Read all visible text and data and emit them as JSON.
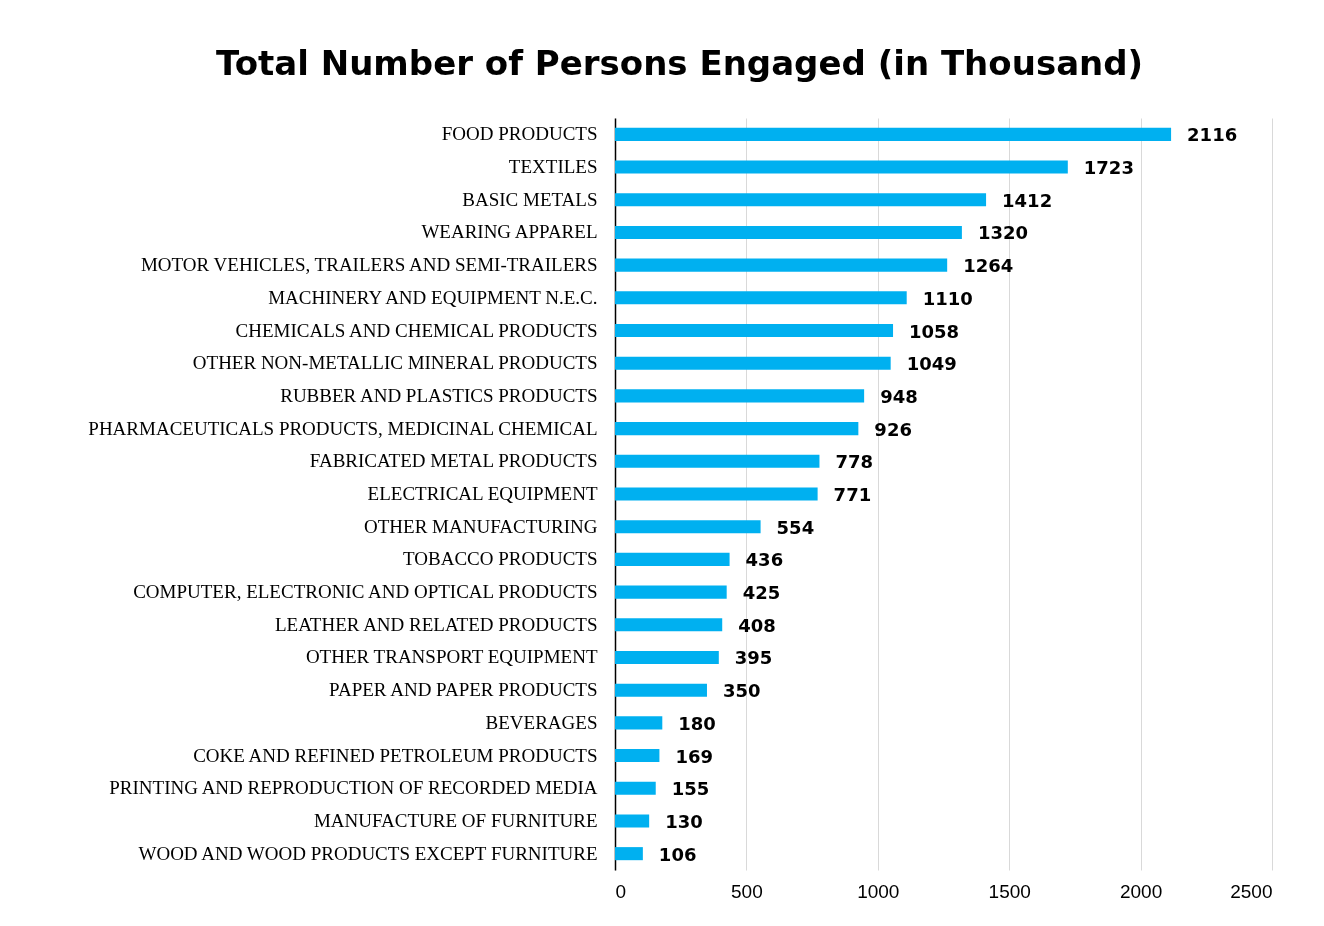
{
  "chart_data": {
    "type": "bar",
    "orientation": "horizontal",
    "title": "Total Number of Persons Engaged (in Thousand)",
    "categories": [
      "FOOD PRODUCTS",
      "TEXTILES",
      "BASIC METALS",
      "WEARING APPAREL",
      "MOTOR VEHICLES, TRAILERS AND SEMI-TRAILERS",
      "MACHINERY AND EQUIPMENT N.E.C.",
      "CHEMICALS AND CHEMICAL PRODUCTS",
      "OTHER NON-METALLIC MINERAL PRODUCTS",
      "RUBBER AND PLASTICS PRODUCTS",
      "PHARMACEUTICALS PRODUCTS, MEDICINAL CHEMICAL",
      "FABRICATED METAL PRODUCTS",
      "ELECTRICAL EQUIPMENT",
      "OTHER MANUFACTURING",
      "TOBACCO PRODUCTS",
      "COMPUTER, ELECTRONIC AND OPTICAL PRODUCTS",
      "LEATHER AND RELATED PRODUCTS",
      "OTHER TRANSPORT EQUIPMENT",
      "PAPER AND PAPER PRODUCTS",
      "BEVERAGES",
      "COKE AND REFINED PETROLEUM PRODUCTS",
      "PRINTING AND REPRODUCTION OF RECORDED MEDIA",
      "MANUFACTURE OF FURNITURE",
      "WOOD AND WOOD PRODUCTS EXCEPT FURNITURE"
    ],
    "values": [
      2116,
      1723,
      1412,
      1320,
      1264,
      1110,
      1058,
      1049,
      948,
      926,
      778,
      771,
      554,
      436,
      425,
      408,
      395,
      350,
      180,
      169,
      155,
      130,
      106
    ],
    "color": "#00b0f0",
    "xlim": [
      0,
      2500
    ],
    "xticks": [
      0,
      500,
      1000,
      1500,
      2000,
      2500
    ],
    "grid": "x",
    "data_labels": true
  }
}
